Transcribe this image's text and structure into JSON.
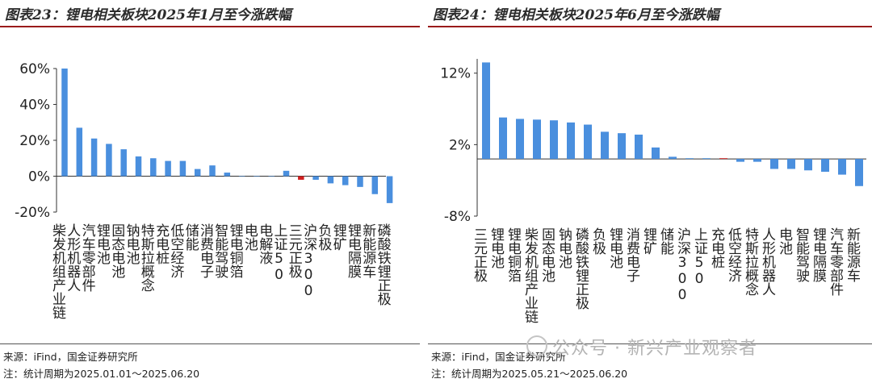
{
  "left_title": "图表23：锂电相关板块2025年1月至今涨跌幅",
  "right_title": "图表24：锂电相关板块2025年6月至今涨跌幅",
  "left_source": "来源：iFind，国金证券研究所",
  "left_note": "注：统计周期为2025.01.01～2025.06.20",
  "right_source": "来源：iFind，国金证券研究所",
  "right_note": "注：统计周期为2025.05.21～2025.06.20",
  "watermark": "公众号 · 新兴产业观察者",
  "colors": {
    "bar": "#4a8fde",
    "highlight": "#d11f1f",
    "title_rule": "#9a1b1b"
  },
  "chart_data": [
    {
      "type": "bar",
      "title": "锂电相关板块2025年1月至今涨跌幅",
      "xlabel": "",
      "ylabel": "",
      "ylim": [
        -20,
        60
      ],
      "yticks": [
        60,
        40,
        20,
        0,
        -20
      ],
      "yticklabels": [
        "60%",
        "40%",
        "20%",
        "0%",
        "-20%"
      ],
      "categories": [
        "柴发机组产业链",
        "人形机器人",
        "汽车零部件",
        "锂电池",
        "固态电池",
        "钠电池",
        "特斯拉概念",
        "充电桩",
        "低空经济",
        "储能",
        "消费电子",
        "智能驾驶",
        "锂电铜箔",
        "电池",
        "电解液",
        "上证50",
        "三元正极",
        "沪深300",
        "负极",
        "锂矿",
        "锂电隔膜",
        "新能源车",
        "磷酸铁锂正极"
      ],
      "values": [
        60,
        27,
        21,
        18,
        15,
        11,
        10,
        8.5,
        8.5,
        4,
        6,
        2,
        0,
        0,
        0,
        3,
        -2,
        -2,
        -4,
        -5,
        -6,
        -10,
        -15
      ],
      "highlight_index": 16
    },
    {
      "type": "bar",
      "title": "锂电相关板块2025年6月至今涨跌幅",
      "xlabel": "",
      "ylabel": "",
      "ylim": [
        -8,
        14
      ],
      "yticks": [
        12,
        2,
        -8
      ],
      "yticklabels": [
        "12%",
        "2%",
        "-8%"
      ],
      "categories": [
        "三元正极",
        "锂电池",
        "锂电铜箔",
        "柴发机组产业链",
        "固态电池",
        "钠电池",
        "磷酸铁锂正极",
        "负极",
        "锂电池",
        "消费电子",
        "锂矿",
        "储能",
        "沪深300",
        "上证50",
        "充电桩",
        "低空经济",
        "特斯拉概念",
        "人形机器人",
        "电池",
        "智能驾驶",
        "锂电隔膜",
        "汽车零部件",
        "新能源车"
      ],
      "values": [
        13.5,
        5.8,
        5.6,
        5.5,
        5.4,
        5.1,
        4.8,
        3.8,
        3.6,
        3.4,
        1.6,
        0.3,
        0.1,
        0.1,
        0.1,
        -0.4,
        -0.4,
        -1.4,
        -1.4,
        -1.6,
        -1.8,
        -2.2,
        -3.8
      ],
      "highlight_index": 14
    }
  ]
}
